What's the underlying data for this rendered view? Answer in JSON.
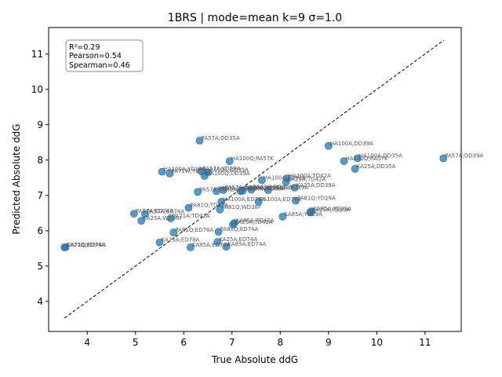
{
  "chart_data": {
    "type": "scatter",
    "title": "1BRS | mode=mean k=9 σ=1.0",
    "xlabel": "True Absolute ddG",
    "ylabel": "Predicted Absolute ddG",
    "xlim": [
      3.2,
      11.75
    ],
    "ylim": [
      3.15,
      11.75
    ],
    "xticks": [
      4,
      5,
      6,
      7,
      8,
      9,
      10,
      11
    ],
    "yticks": [
      4,
      5,
      6,
      7,
      8,
      9,
      10,
      11
    ],
    "grid": false,
    "point_color": "#1f77b4",
    "diagonal": {
      "style": "dashed",
      "from": [
        3.53,
        3.53
      ],
      "to": [
        11.39,
        11.39
      ]
    },
    "stats_box": {
      "lines": [
        "R²=0.29",
        "Pearson=0.54",
        "Spearman=0.46"
      ],
      "placement": "top-left"
    },
    "points": [
      {
        "x": 3.53,
        "y": 5.53,
        "label": "EA71Q;ED74A"
      },
      {
        "x": 3.55,
        "y": 5.53,
        "label": "EA71Q;ED74A"
      },
      {
        "x": 4.97,
        "y": 6.48,
        "label": "PA57A;ED74A"
      },
      {
        "x": 5.12,
        "y": 6.28,
        "label": "KA25A;WD38F"
      },
      {
        "x": 5.2,
        "y": 6.47,
        "label": "PA57A;ED74A"
      },
      {
        "x": 5.5,
        "y": 5.67,
        "label": "KA25A;ED78A"
      },
      {
        "x": 5.55,
        "y": 7.67,
        "label": "HA100A;YD29A"
      },
      {
        "x": 5.71,
        "y": 7.62,
        "label": "PA71W;YD29A"
      },
      {
        "x": 5.73,
        "y": 6.35,
        "label": "PA71A;TD42A"
      },
      {
        "x": 5.79,
        "y": 5.95,
        "label": "PA81Q;ED78A"
      },
      {
        "x": 6.1,
        "y": 6.65,
        "label": "PA81Q;TD42A"
      },
      {
        "x": 6.14,
        "y": 5.53,
        "label": "KA85A;ED74A"
      },
      {
        "x": 6.29,
        "y": 7.1,
        "label": "PA57A;TD42A"
      },
      {
        "x": 6.33,
        "y": 8.55,
        "label": "PA57A;DD35A"
      },
      {
        "x": 6.36,
        "y": 7.68,
        "label": "PA57A;YD29A"
      },
      {
        "x": 6.43,
        "y": 7.55,
        "label": "HA100Q;DD39A"
      },
      {
        "x": 6.5,
        "y": 7.65,
        "label": "RA59A;DD39A"
      },
      {
        "x": 6.68,
        "y": 7.12,
        "label": "PA57A;DD39A"
      },
      {
        "x": 6.7,
        "y": 5.68,
        "label": "KA25A;ED74A"
      },
      {
        "x": 6.72,
        "y": 5.97,
        "label": "PA81Q;ED74A"
      },
      {
        "x": 6.75,
        "y": 6.6,
        "label": "PA81Q;WD38F"
      },
      {
        "x": 6.78,
        "y": 6.82,
        "label": "HA100A;ED76A"
      },
      {
        "x": 6.82,
        "y": 7.15,
        "label": "PA57A;DD39A"
      },
      {
        "x": 6.88,
        "y": 5.55,
        "label": "KA85A;ED74A"
      },
      {
        "x": 6.95,
        "y": 7.97,
        "label": "HA100Q;RA57K"
      },
      {
        "x": 7.02,
        "y": 6.17,
        "label": "KA25A;TD42A"
      },
      {
        "x": 7.05,
        "y": 6.22,
        "label": "KA85A;TD42A"
      },
      {
        "x": 7.18,
        "y": 7.12,
        "label": "HA100A;DD39A"
      },
      {
        "x": 7.22,
        "y": 7.13,
        "label": "PA57A;DD39A"
      },
      {
        "x": 7.4,
        "y": 7.16,
        "label": "RA83Q;DD39A"
      },
      {
        "x": 7.55,
        "y": 6.82,
        "label": "PA100A;ED76A"
      },
      {
        "x": 7.62,
        "y": 7.43,
        "label": "HA100A;TD42A"
      },
      {
        "x": 7.75,
        "y": 7.15,
        "label": "PA59A;DD39A"
      },
      {
        "x": 8.05,
        "y": 6.4,
        "label": "KA85A;YD29A"
      },
      {
        "x": 8.12,
        "y": 7.38,
        "label": "KA25A;TD42A"
      },
      {
        "x": 8.14,
        "y": 7.48,
        "label": "HA100A;TD42A"
      },
      {
        "x": 8.3,
        "y": 7.22,
        "label": "KA25A;DD39A"
      },
      {
        "x": 8.32,
        "y": 6.85,
        "label": "PA81Q;YD29A"
      },
      {
        "x": 8.62,
        "y": 6.52,
        "label": "KA25A;YD29A"
      },
      {
        "x": 8.65,
        "y": 6.55,
        "label": "KA85A;YD29A"
      },
      {
        "x": 9.0,
        "y": 8.4,
        "label": "HA100A;DD39A"
      },
      {
        "x": 9.32,
        "y": 7.97,
        "label": "HA100Q;RA57K"
      },
      {
        "x": 9.55,
        "y": 7.75,
        "label": "KA25A;DD35A"
      },
      {
        "x": 9.6,
        "y": 8.05,
        "label": "HA100A;DD35A"
      },
      {
        "x": 11.38,
        "y": 8.05,
        "label": "PA57A;DD39A"
      }
    ]
  }
}
